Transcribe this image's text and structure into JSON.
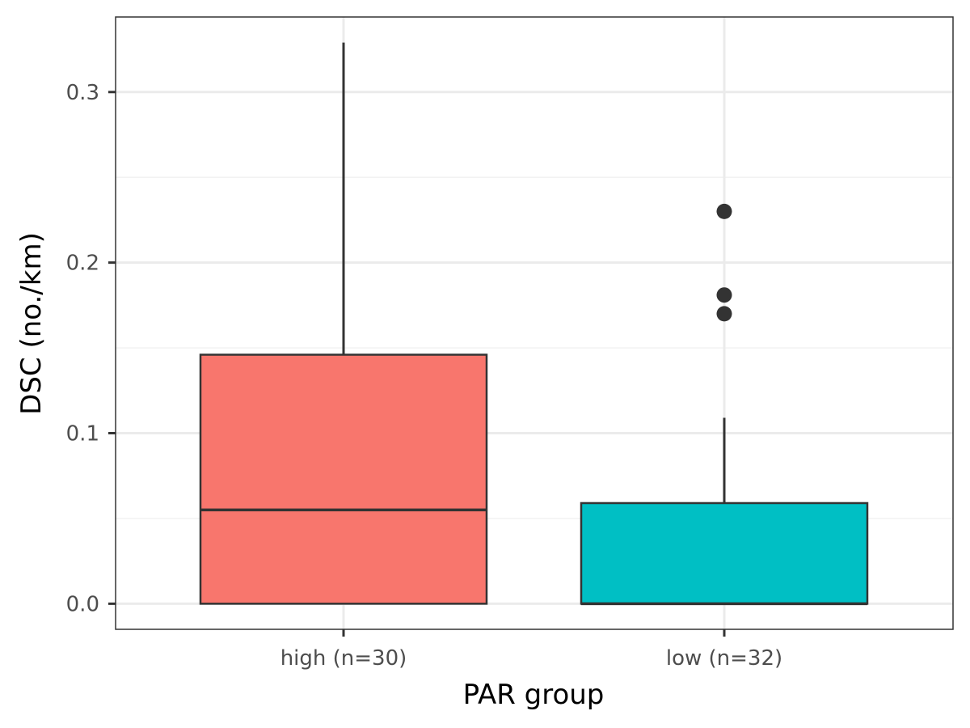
{
  "chart_data": {
    "type": "box",
    "title": "",
    "xlabel": "PAR group",
    "ylabel": "DSC (no./km)",
    "ylim": [
      -0.015,
      0.344
    ],
    "yticks": [
      0.0,
      0.1,
      0.2,
      0.3
    ],
    "ytick_labels": [
      "0.0",
      "0.1",
      "0.2",
      "0.3"
    ],
    "categories": [
      "high (n=30)",
      "low (n=32)"
    ],
    "grid": true,
    "legend": "none",
    "boxes": [
      {
        "category": "high (n=30)",
        "whisker_low": 0.0,
        "q1": 0.0,
        "median": 0.055,
        "q3": 0.146,
        "whisker_high": 0.329,
        "outliers": [],
        "color": "#F8766D"
      },
      {
        "category": "low (n=32)",
        "whisker_low": 0.0,
        "q1": 0.0,
        "median": 0.0,
        "q3": 0.059,
        "whisker_high": 0.109,
        "outliers": [
          0.17,
          0.181,
          0.23
        ],
        "color": "#00BFC4"
      }
    ]
  },
  "colors": {
    "panel_border": "#333333",
    "grid_major": "#ebebeb",
    "grid_minor": "#f2f2f2",
    "box_line": "#333333",
    "tick_text": "#4d4d4d",
    "title_text": "#000000"
  }
}
